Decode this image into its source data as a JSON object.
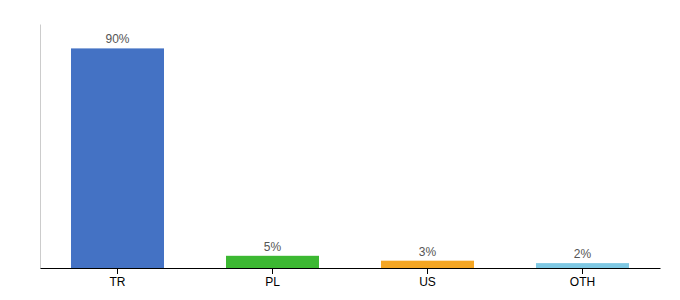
{
  "chart_data": {
    "type": "bar",
    "categories": [
      "TR",
      "PL",
      "US",
      "OTH"
    ],
    "values": [
      90,
      5,
      3,
      2
    ],
    "value_labels": [
      "90%",
      "5%",
      "3%",
      "2%"
    ],
    "colors": [
      "#4472c4",
      "#3cb832",
      "#f5a623",
      "#7ec8e3"
    ],
    "ylim": [
      0,
      100
    ],
    "data_labels": true,
    "tick_labels": "x"
  }
}
